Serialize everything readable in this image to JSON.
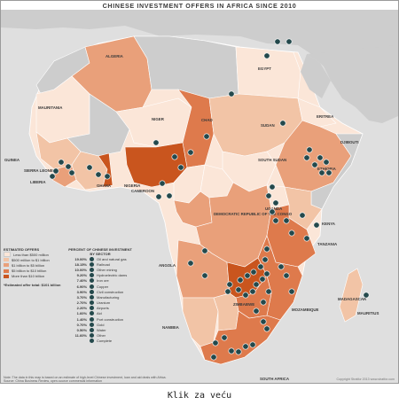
{
  "title": "CHINESE INVESTMENT OFFERS IN AFRICA SINCE 2010",
  "colors": {
    "sea": "#dfdfdf",
    "land_gray": "#cdcdcd",
    "cat1": "#fbe6d8",
    "cat2": "#f2c4a6",
    "cat3": "#e9a07a",
    "cat4": "#de7a4c",
    "cat5": "#c9551e",
    "marker": "#24494c"
  },
  "countries": {
    "algeria": "ALGERIA",
    "mauritania": "MAURITANIA",
    "niger": "NIGER",
    "chad": "CHAD",
    "egypt": "EGYPT",
    "sudan": "SUDAN",
    "eritrea": "ERITREA",
    "djibouti": "DJIBOUTI",
    "ethiopia": "ETHIOPIA",
    "south_sudan": "SOUTH SUDAN",
    "guinea": "GUINEA",
    "sierra_leone": "SIERRA LEONE",
    "liberia": "LIBERIA",
    "ghana": "GHANA",
    "nigeria": "NIGERIA",
    "cameroon": "CAMEROON",
    "drc": "DEMOCRATIC REPUBLIC OF THE CONGO",
    "uganda": "UGANDA",
    "kenya": "KENYA",
    "tanzania": "TANZANIA",
    "angola": "ANGOLA",
    "zimbabwe": "ZIMBABWE",
    "mozambique": "MOZAMBIQUE",
    "namibia": "NAMIBIA",
    "madagascar": "MADAGASCAR",
    "mauritius": "MAURITIUS",
    "south_africa": "SOUTH AFRICA"
  },
  "legend": {
    "offers_title": "ESTIMATED OFFERS",
    "categories": [
      {
        "label": "Less than $500 million",
        "color": "#fbe6d8"
      },
      {
        "label": "$500 million to $1 billion",
        "color": "#f2c4a6"
      },
      {
        "label": "$1 billion to $5 billion",
        "color": "#e9a07a"
      },
      {
        "label": "$5 billion to $10 billion",
        "color": "#de7a4c"
      },
      {
        "label": "More than $10 billion",
        "color": "#c9551e"
      }
    ],
    "total": "*Estimated offer total: $101 billion",
    "sector_title": "PERCENT OF CHINESE INVESTMENT BY SECTOR",
    "sectors": [
      {
        "pct": "19.00%",
        "label": "Oil and natural gas"
      },
      {
        "pct": "18.15%",
        "label": "Railroad"
      },
      {
        "pct": "10.00%",
        "label": "Other mining"
      },
      {
        "pct": "9.20%",
        "label": "Hydroelectric dams"
      },
      {
        "pct": "7.40%",
        "label": "Iron ore"
      },
      {
        "pct": "6.90%",
        "label": "Copper"
      },
      {
        "pct": "3.90%",
        "label": "Civil construction"
      },
      {
        "pct": "3.70%",
        "label": "Manufacturing"
      },
      {
        "pct": "2.70%",
        "label": "Uranium"
      },
      {
        "pct": "2.20%",
        "label": "Airports"
      },
      {
        "pct": "1.60%",
        "label": "Aid"
      },
      {
        "pct": "1.40%",
        "label": "Port construction"
      },
      {
        "pct": "0.70%",
        "label": "Gold"
      },
      {
        "pct": "0.50%",
        "label": "Water"
      },
      {
        "pct": "11.60%",
        "label": "Other"
      },
      {
        "pct": "",
        "label": "Complete"
      }
    ]
  },
  "note": "Note: The data in this map is based on an estimate of high-level Chinese investment, loan and aid deals with Africa.",
  "source": "Source: China Business Review, open-source commercial information",
  "credit": "Copyright Stratfor 2013    www.stratfor.com",
  "caption": "Klik za veću"
}
